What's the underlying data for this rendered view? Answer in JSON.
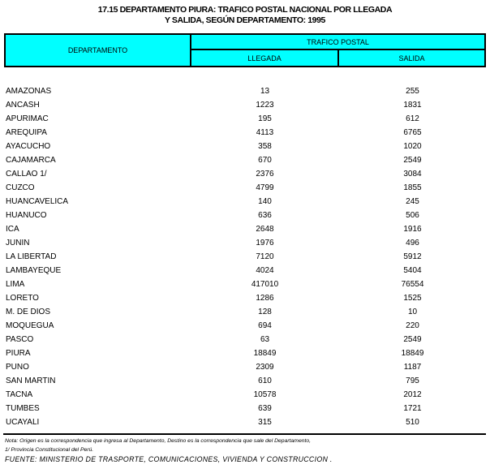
{
  "title": {
    "line1": "17.15 DEPARTAMENTO PIURA: TRAFICO POSTAL NACIONAL POR LLEGADA",
    "line2": "Y SALIDA, SEGÚN DEPARTAMENTO: 1995"
  },
  "table": {
    "header": {
      "departamento": "DEPARTAMENTO",
      "trafico_postal": "TRAFICO POSTAL",
      "llegada": "LLEGADA",
      "salida": "SALIDA"
    },
    "rows": [
      {
        "departamento": "AMAZONAS",
        "llegada": "13",
        "salida": "255"
      },
      {
        "departamento": "ANCASH",
        "llegada": "1223",
        "salida": "1831"
      },
      {
        "departamento": "APURIMAC",
        "llegada": "195",
        "salida": "612"
      },
      {
        "departamento": "AREQUIPA",
        "llegada": "4113",
        "salida": "6765"
      },
      {
        "departamento": "AYACUCHO",
        "llegada": "358",
        "salida": "1020"
      },
      {
        "departamento": "CAJAMARCA",
        "llegada": "670",
        "salida": "2549"
      },
      {
        "departamento": "CALLAO 1/",
        "llegada": "2376",
        "salida": "3084"
      },
      {
        "departamento": "CUZCO",
        "llegada": "4799",
        "salida": "1855"
      },
      {
        "departamento": "HUANCAVELICA",
        "llegada": "140",
        "salida": "245"
      },
      {
        "departamento": "HUANUCO",
        "llegada": "636",
        "salida": "506"
      },
      {
        "departamento": "ICA",
        "llegada": "2648",
        "salida": "1916"
      },
      {
        "departamento": "JUNIN",
        "llegada": "1976",
        "salida": "496"
      },
      {
        "departamento": "LA LIBERTAD",
        "llegada": "7120",
        "salida": "5912"
      },
      {
        "departamento": "LAMBAYEQUE",
        "llegada": "4024",
        "salida": "5404"
      },
      {
        "departamento": "LIMA",
        "llegada": "417010",
        "salida": "76554"
      },
      {
        "departamento": "LORETO",
        "llegada": "1286",
        "salida": "1525"
      },
      {
        "departamento": "M. DE DIOS",
        "llegada": "128",
        "salida": "10"
      },
      {
        "departamento": "MOQUEGUA",
        "llegada": "694",
        "salida": "220"
      },
      {
        "departamento": "PASCO",
        "llegada": "63",
        "salida": "2549"
      },
      {
        "departamento": "PIURA",
        "llegada": "18849",
        "salida": "18849"
      },
      {
        "departamento": "PUNO",
        "llegada": "2309",
        "salida": "1187"
      },
      {
        "departamento": "SAN MARTIN",
        "llegada": "610",
        "salida": "795"
      },
      {
        "departamento": "TACNA",
        "llegada": "10578",
        "salida": "2012"
      },
      {
        "departamento": "TUMBES",
        "llegada": "639",
        "salida": "1721"
      },
      {
        "departamento": "UCAYALI",
        "llegada": "315",
        "salida": "510"
      }
    ]
  },
  "footer": {
    "nota": "Nota: Origen es la correspondencia que ingresa al Departamento, Destino es la correspondencia que sale del Departamento,",
    "nota2": "1/ Provincia Constitucional del Perú.",
    "fuente": "FUENTE: MINISTERIO DE TRASPORTE, COMUNICACIONES, VIVIENDA Y CONSTRUCCION ."
  },
  "colors": {
    "header_bg": "#00FFFF",
    "border": "#000000",
    "text": "#000000"
  }
}
